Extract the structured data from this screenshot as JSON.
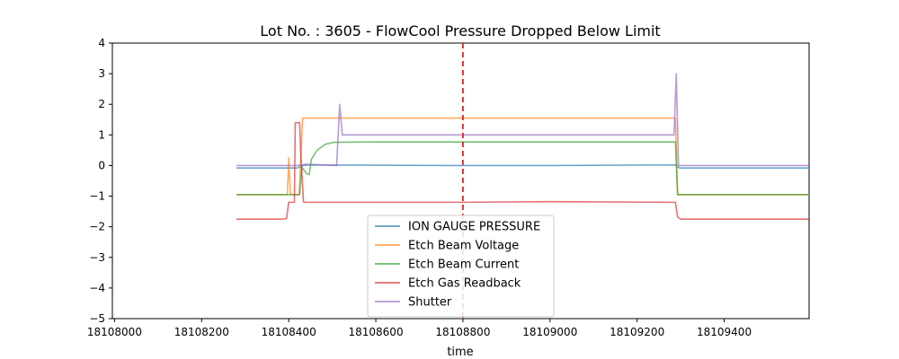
{
  "chart_data": {
    "type": "line",
    "title": "Lot No. : 3605 - FlowCool Pressure Dropped Below Limit",
    "xlabel": "time",
    "ylabel": "",
    "xlim": [
      18107995,
      18109595
    ],
    "ylim": [
      -5,
      4
    ],
    "x_ticks": [
      18108000,
      18108200,
      18108400,
      18108600,
      18108800,
      18109000,
      18109200,
      18109400
    ],
    "x_tick_labels": [
      "18108000",
      "18108200",
      "18108400",
      "18108600",
      "18108800",
      "18109000",
      "18109200",
      "18109400"
    ],
    "y_ticks": [
      -5,
      -4,
      -3,
      -2,
      -1,
      0,
      1,
      2,
      3,
      4
    ],
    "y_tick_labels": [
      "−5",
      "−4",
      "−3",
      "−2",
      "−1",
      "0",
      "1",
      "2",
      "3",
      "4"
    ],
    "grid": false,
    "legend_position": "lower-center",
    "vline": {
      "x": 18108800,
      "color": "#d62728",
      "style": "dashed"
    },
    "series": [
      {
        "name": "ION GAUGE PRESSURE",
        "color": "#1f77b4",
        "points": [
          [
            18108280,
            -0.08
          ],
          [
            18108420,
            -0.08
          ],
          [
            18108432,
            0.0
          ],
          [
            18108450,
            0.02
          ],
          [
            18108800,
            0.0
          ],
          [
            18109000,
            0.0
          ],
          [
            18109288,
            0.02
          ],
          [
            18109298,
            -0.08
          ],
          [
            18109595,
            -0.08
          ]
        ]
      },
      {
        "name": "Etch Beam Voltage",
        "color": "#ff7f0e",
        "points": [
          [
            18108280,
            -0.95
          ],
          [
            18108397,
            -0.95
          ],
          [
            18108400,
            0.25
          ],
          [
            18108404,
            -0.95
          ],
          [
            18108424,
            -0.95
          ],
          [
            18108432,
            1.55
          ],
          [
            18109288,
            1.55
          ],
          [
            18109293,
            -0.95
          ],
          [
            18109595,
            -0.95
          ]
        ]
      },
      {
        "name": "Etch Beam Current",
        "color": "#2ca02c",
        "points": [
          [
            18108280,
            -0.95
          ],
          [
            18108425,
            -0.95
          ],
          [
            18108430,
            -0.05
          ],
          [
            18108440,
            -0.25
          ],
          [
            18108447,
            -0.3
          ],
          [
            18108452,
            0.2
          ],
          [
            18108465,
            0.5
          ],
          [
            18108485,
            0.7
          ],
          [
            18108505,
            0.76
          ],
          [
            18108600,
            0.77
          ],
          [
            18108800,
            0.77
          ],
          [
            18109000,
            0.77
          ],
          [
            18109288,
            0.77
          ],
          [
            18109293,
            -0.95
          ],
          [
            18109595,
            -0.95
          ]
        ]
      },
      {
        "name": "Etch Gas Readback",
        "color": "#d62728",
        "points": [
          [
            18108280,
            -1.75
          ],
          [
            18108385,
            -1.75
          ],
          [
            18108395,
            -1.73
          ],
          [
            18108400,
            -1.2
          ],
          [
            18108413,
            -1.2
          ],
          [
            18108415,
            1.4
          ],
          [
            18108425,
            1.4
          ],
          [
            18108428,
            0.3
          ],
          [
            18108434,
            -1.2
          ],
          [
            18108800,
            -1.2
          ],
          [
            18109000,
            -1.18
          ],
          [
            18109288,
            -1.2
          ],
          [
            18109293,
            -1.68
          ],
          [
            18109300,
            -1.75
          ],
          [
            18109595,
            -1.75
          ]
        ]
      },
      {
        "name": "Shutter",
        "color": "#9467bd",
        "points": [
          [
            18108280,
            0.0
          ],
          [
            18108420,
            0.0
          ],
          [
            18108440,
            0.04
          ],
          [
            18108510,
            0.0
          ],
          [
            18108517,
            2.0
          ],
          [
            18108523,
            1.0
          ],
          [
            18108800,
            1.0
          ],
          [
            18109000,
            1.0
          ],
          [
            18109285,
            1.0
          ],
          [
            18109290,
            3.0
          ],
          [
            18109295,
            0.0
          ],
          [
            18109595,
            0.0
          ]
        ]
      }
    ]
  }
}
